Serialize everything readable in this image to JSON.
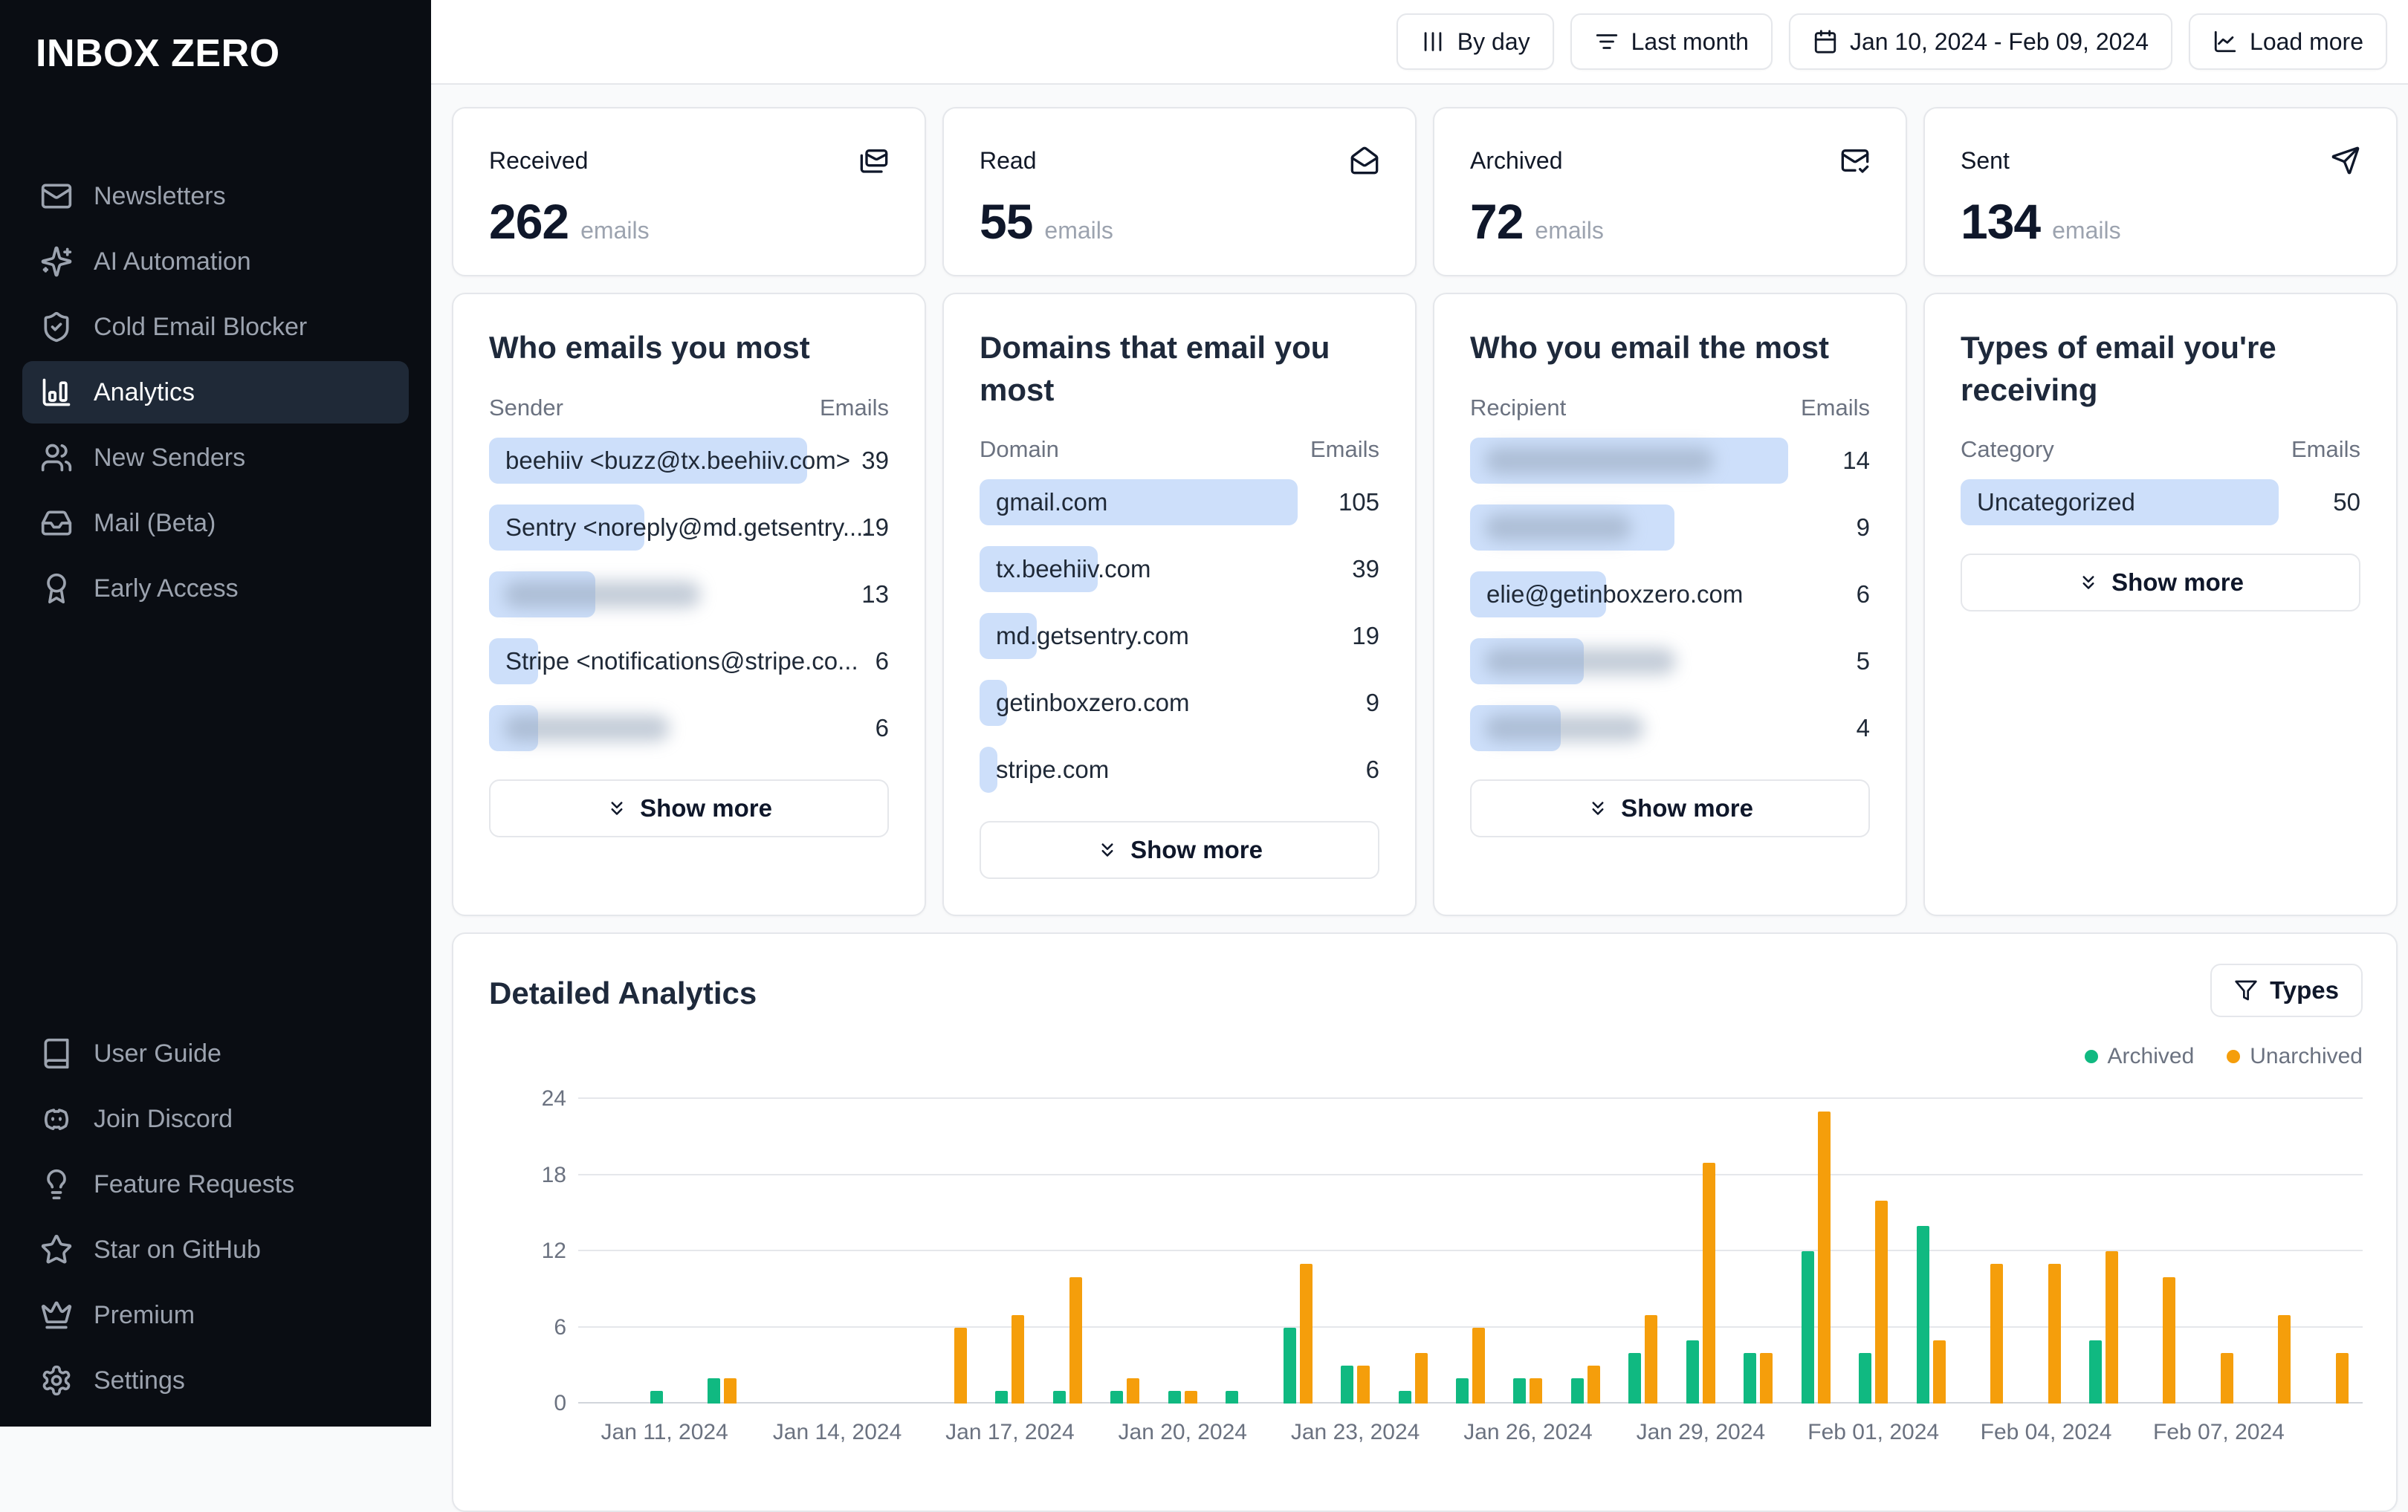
{
  "app": {
    "logo": "INBOX ZERO"
  },
  "sidebar": {
    "items": [
      {
        "label": "Newsletters",
        "icon": "mail-icon",
        "active": false
      },
      {
        "label": "AI Automation",
        "icon": "sparkles-icon",
        "active": false
      },
      {
        "label": "Cold Email Blocker",
        "icon": "shield-check-icon",
        "active": false
      },
      {
        "label": "Analytics",
        "icon": "bar-chart-icon",
        "active": true
      },
      {
        "label": "New Senders",
        "icon": "users-icon",
        "active": false
      },
      {
        "label": "Mail (Beta)",
        "icon": "inbox-icon",
        "active": false
      },
      {
        "label": "Early Access",
        "icon": "ribbon-icon",
        "active": false
      }
    ],
    "footer_items": [
      {
        "label": "User Guide",
        "icon": "book-icon"
      },
      {
        "label": "Join Discord",
        "icon": "discord-icon"
      },
      {
        "label": "Feature Requests",
        "icon": "lightbulb-icon"
      },
      {
        "label": "Star on GitHub",
        "icon": "star-icon"
      },
      {
        "label": "Premium",
        "icon": "crown-icon"
      },
      {
        "label": "Settings",
        "icon": "settings-icon"
      }
    ]
  },
  "topbar": {
    "buttons": [
      {
        "label": "By day",
        "icon": "columns-icon"
      },
      {
        "label": "Last month",
        "icon": "filter-lines-icon"
      },
      {
        "label": "Jan 10, 2024 - Feb 09, 2024",
        "icon": "calendar-icon"
      },
      {
        "label": "Load more",
        "icon": "chart-line-icon"
      }
    ]
  },
  "stats": [
    {
      "label": "Received",
      "value": "262",
      "unit": "emails",
      "icon": "mails-icon"
    },
    {
      "label": "Read",
      "value": "55",
      "unit": "emails",
      "icon": "mail-open-icon"
    },
    {
      "label": "Archived",
      "value": "72",
      "unit": "emails",
      "icon": "mail-check-icon"
    },
    {
      "label": "Sent",
      "value": "134",
      "unit": "emails",
      "icon": "send-icon"
    }
  ],
  "list_cards": [
    {
      "title": "Who emails you most",
      "columns": [
        "Sender",
        "Emails"
      ],
      "rows": [
        {
          "label": "beehiiv <buzz@tx.beehiiv.com>",
          "value": 39,
          "blurred": false,
          "blur_pct": 0
        },
        {
          "label": "Sentry <noreply@md.getsentry....",
          "value": 19,
          "blurred": false,
          "blur_pct": 0
        },
        {
          "label": "",
          "value": 13,
          "blurred": true,
          "blur_pct": 62
        },
        {
          "label": "Stripe <notifications@stripe.co...",
          "value": 6,
          "blurred": false,
          "blur_pct": 0
        },
        {
          "label": "",
          "value": 6,
          "blurred": true,
          "blur_pct": 52
        }
      ],
      "show_more_label": "Show more"
    },
    {
      "title": "Domains that email you most",
      "columns": [
        "Domain",
        "Emails"
      ],
      "rows": [
        {
          "label": "gmail.com",
          "value": 105,
          "blurred": false,
          "blur_pct": 0
        },
        {
          "label": "tx.beehiiv.com",
          "value": 39,
          "blurred": false,
          "blur_pct": 0
        },
        {
          "label": "md.getsentry.com",
          "value": 19,
          "blurred": false,
          "blur_pct": 0
        },
        {
          "label": "getinboxzero.com",
          "value": 9,
          "blurred": false,
          "blur_pct": 0
        },
        {
          "label": "stripe.com",
          "value": 6,
          "blurred": false,
          "blur_pct": 0
        }
      ],
      "show_more_label": "Show more"
    },
    {
      "title": "Who you email the most",
      "columns": [
        "Recipient",
        "Emails"
      ],
      "rows": [
        {
          "label": "",
          "value": 14,
          "blurred": true,
          "blur_pct": 72
        },
        {
          "label": "",
          "value": 9,
          "blurred": true,
          "blur_pct": 46
        },
        {
          "label": "elie@getinboxzero.com",
          "value": 6,
          "blurred": false,
          "blur_pct": 0
        },
        {
          "label": "",
          "value": 5,
          "blurred": true,
          "blur_pct": 60
        },
        {
          "label": "",
          "value": 4,
          "blurred": true,
          "blur_pct": 50
        }
      ],
      "show_more_label": "Show more"
    },
    {
      "title": "Types of email you're receiving",
      "columns": [
        "Category",
        "Emails"
      ],
      "rows": [
        {
          "label": "Uncategorized",
          "value": 50,
          "blurred": false,
          "blur_pct": 0
        }
      ],
      "show_more_label": "Show more"
    }
  ],
  "detailed": {
    "title": "Detailed Analytics",
    "filter_label": "Types",
    "filter_icon": "funnel-icon",
    "legend": [
      {
        "label": "Archived",
        "color": "#10b981"
      },
      {
        "label": "Unarchived",
        "color": "#f59e0b"
      }
    ]
  },
  "chart_data": {
    "type": "bar",
    "categories": [
      "Jan 10, 2024",
      "Jan 11, 2024",
      "Jan 12, 2024",
      "Jan 13, 2024",
      "Jan 14, 2024",
      "Jan 15, 2024",
      "Jan 16, 2024",
      "Jan 17, 2024",
      "Jan 18, 2024",
      "Jan 19, 2024",
      "Jan 20, 2024",
      "Jan 21, 2024",
      "Jan 22, 2024",
      "Jan 23, 2024",
      "Jan 24, 2024",
      "Jan 25, 2024",
      "Jan 26, 2024",
      "Jan 27, 2024",
      "Jan 28, 2024",
      "Jan 29, 2024",
      "Jan 30, 2024",
      "Jan 31, 2024",
      "Feb 01, 2024",
      "Feb 02, 2024",
      "Feb 03, 2024",
      "Feb 04, 2024",
      "Feb 05, 2024",
      "Feb 06, 2024",
      "Feb 07, 2024",
      "Feb 08, 2024",
      "Feb 09, 2024"
    ],
    "series": [
      {
        "name": "Archived",
        "color": "#10b981",
        "values": [
          0,
          1,
          2,
          0,
          0,
          0,
          0,
          1,
          1,
          1,
          1,
          1,
          6,
          3,
          1,
          2,
          2,
          2,
          4,
          5,
          4,
          12,
          4,
          14,
          0,
          0,
          5,
          0,
          0,
          0,
          0
        ]
      },
      {
        "name": "Unarchived",
        "color": "#f59e0b",
        "values": [
          0,
          0,
          2,
          0,
          0,
          0,
          6,
          7,
          10,
          2,
          1,
          0,
          11,
          3,
          4,
          6,
          2,
          3,
          7,
          19,
          4,
          23,
          16,
          5,
          11,
          11,
          12,
          10,
          4,
          7,
          4
        ]
      }
    ],
    "title": "Detailed Analytics",
    "xlabel": "",
    "ylabel": "",
    "ylim": [
      0,
      24
    ],
    "yticks": [
      0,
      6,
      12,
      18,
      24
    ],
    "grid": true,
    "legend_position": "top-right",
    "tick_label_every": 3,
    "tick_label_start_index": 1
  }
}
